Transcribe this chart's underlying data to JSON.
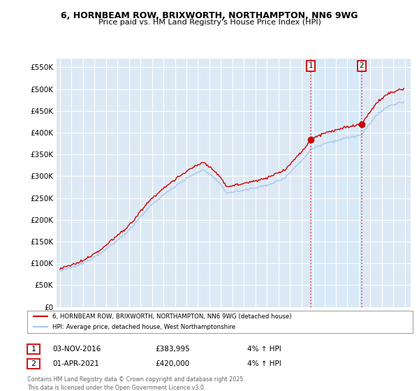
{
  "title_line1": "6, HORNBEAM ROW, BRIXWORTH, NORTHAMPTON, NN6 9WG",
  "title_line2": "Price paid vs. HM Land Registry's House Price Index (HPI)",
  "background_color": "#ffffff",
  "plot_bg_color": "#dce9f5",
  "grid_color": "#ffffff",
  "red_line_color": "#cc0000",
  "blue_line_color": "#a8c8e8",
  "vline_color": "#dd4444",
  "shade_color": "#d8eaf8",
  "legend_red_label": "6, HORNBEAM ROW, BRIXWORTH, NORTHAMPTON, NN6 9WG (detached house)",
  "legend_blue_label": "HPI: Average price, detached house, West Northamptonshire",
  "sale1_date": "03-NOV-2016",
  "sale1_price": "£383,995",
  "sale1_hpi": "4% ↑ HPI",
  "sale2_date": "01-APR-2021",
  "sale2_price": "£420,000",
  "sale2_hpi": "4% ↑ HPI",
  "footer": "Contains HM Land Registry data © Crown copyright and database right 2025.\nThis data is licensed under the Open Government Licence v3.0.",
  "ylim": [
    0,
    570000
  ],
  "yticks": [
    0,
    50000,
    100000,
    150000,
    200000,
    250000,
    300000,
    350000,
    400000,
    450000,
    500000,
    550000
  ],
  "ytick_labels": [
    "£0",
    "£50K",
    "£100K",
    "£150K",
    "£200K",
    "£250K",
    "£300K",
    "£350K",
    "£400K",
    "£450K",
    "£500K",
    "£550K"
  ],
  "xlim_start": 1994.7,
  "xlim_end": 2025.5,
  "year_start": 1995,
  "year_end": 2025
}
